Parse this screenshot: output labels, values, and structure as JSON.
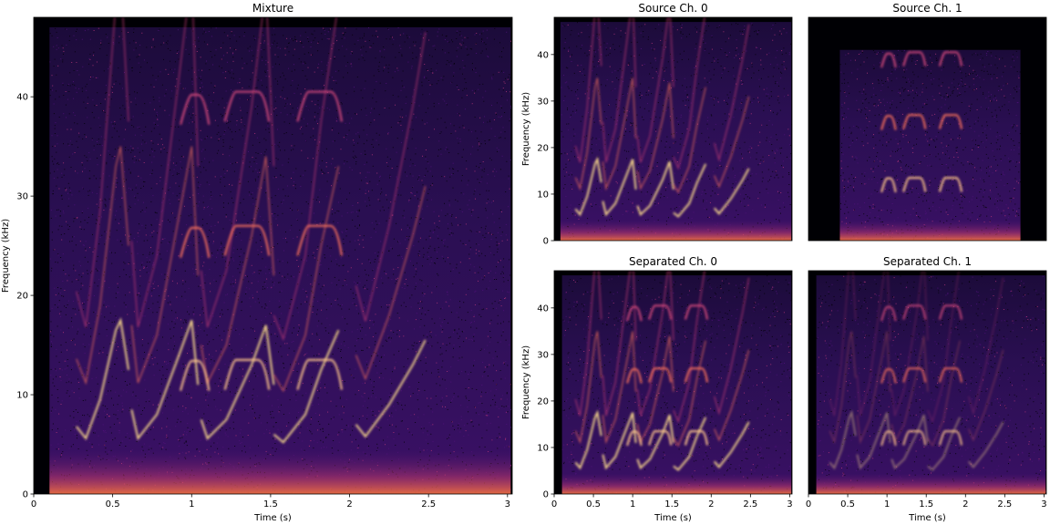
{
  "chart_data": [
    {
      "type": "heatmap",
      "id": "mixture",
      "title": "Mixture",
      "xlabel": "Time (s)",
      "ylabel": "Frequency (kHz)",
      "xlim": [
        0,
        3.03
      ],
      "ylim": [
        0,
        48
      ],
      "x_ticks": [
        0,
        0.5,
        1,
        1.5,
        2,
        2.5,
        3
      ],
      "x_tick_labels": [
        "0",
        "0.5",
        "1",
        "1.5",
        "2",
        "2.5",
        "3"
      ],
      "y_ticks": [
        0,
        10,
        20,
        30,
        40
      ],
      "y_tick_labels": [
        "0",
        "10",
        "20",
        "30",
        "40"
      ],
      "colormap": "magma",
      "content": "spectrogram"
    },
    {
      "type": "heatmap",
      "id": "source0",
      "title": "Source Ch. 0",
      "xlabel": "",
      "ylabel": "Frequency (kHz)",
      "xlim": [
        0,
        3.03
      ],
      "ylim": [
        0,
        48
      ],
      "x_ticks": [],
      "x_tick_labels": [],
      "y_ticks": [
        0,
        10,
        20,
        30,
        40
      ],
      "y_tick_labels": [
        "0",
        "10",
        "20",
        "30",
        "40"
      ],
      "colormap": "magma",
      "content": "spectrogram"
    },
    {
      "type": "heatmap",
      "id": "source1",
      "title": "Source Ch. 1",
      "xlabel": "",
      "ylabel": "",
      "xlim": [
        0,
        3.03
      ],
      "ylim": [
        0,
        48
      ],
      "x_ticks": [],
      "x_tick_labels": [],
      "y_ticks": [],
      "y_tick_labels": [],
      "colormap": "magma",
      "content": "spectrogram"
    },
    {
      "type": "heatmap",
      "id": "sep0",
      "title": "Separated Ch. 0",
      "xlabel": "Time (s)",
      "ylabel": "Frequency (kHz)",
      "xlim": [
        0,
        3.03
      ],
      "ylim": [
        0,
        48
      ],
      "x_ticks": [
        0,
        0.5,
        1,
        1.5,
        2,
        2.5,
        3
      ],
      "x_tick_labels": [
        "0",
        "0.5",
        "1",
        "1.5",
        "2",
        "2.5",
        "3"
      ],
      "y_ticks": [
        0,
        10,
        20,
        30,
        40
      ],
      "y_tick_labels": [
        "0",
        "10",
        "20",
        "30",
        "40"
      ],
      "colormap": "magma",
      "content": "spectrogram"
    },
    {
      "type": "heatmap",
      "id": "sep1",
      "title": "Separated Ch. 1",
      "xlabel": "Time (s)",
      "ylabel": "",
      "xlim": [
        0,
        3.03
      ],
      "ylim": [
        0,
        48
      ],
      "x_ticks": [
        0,
        0.5,
        1,
        1.5,
        2,
        2.5,
        3
      ],
      "x_tick_labels": [
        "0",
        "0.5",
        "1",
        "1.5",
        "2",
        "2.5",
        "3"
      ],
      "y_ticks": [],
      "y_tick_labels": [],
      "colormap": "magma",
      "content": "spectrogram"
    }
  ]
}
